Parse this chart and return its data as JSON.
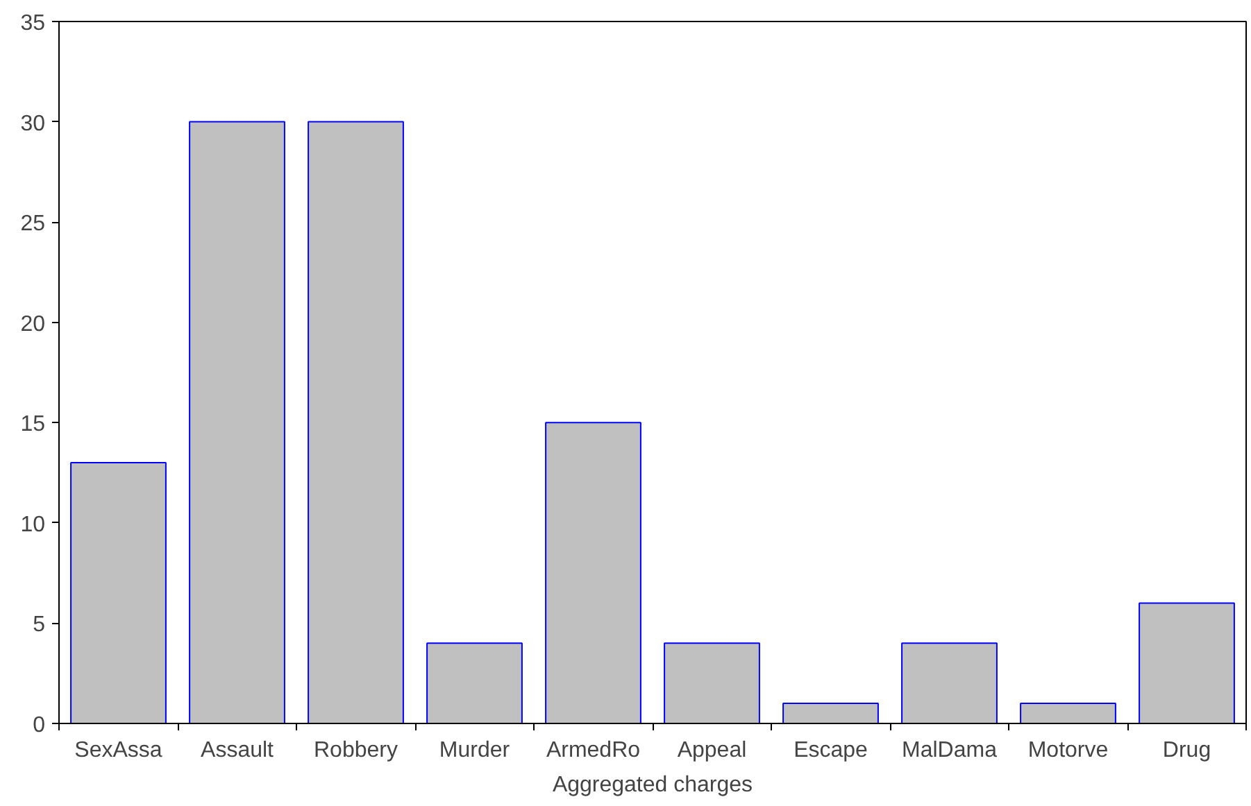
{
  "chart_data": {
    "type": "bar",
    "xlabel": "Aggregated charges",
    "categories": [
      "SexAssa",
      "Assault",
      "Robbery",
      "Murder",
      "ArmedRo",
      "Appeal",
      "Escape",
      "MalDama",
      "Motorve",
      "Drug"
    ],
    "values": [
      13,
      30,
      30,
      4,
      15,
      4,
      1,
      4,
      1,
      6
    ],
    "color": "#c0c0c0",
    "ylim": [
      0,
      35
    ],
    "yticks": [
      0,
      5,
      10,
      15,
      20,
      25,
      30,
      35
    ],
    "grid": false
  }
}
